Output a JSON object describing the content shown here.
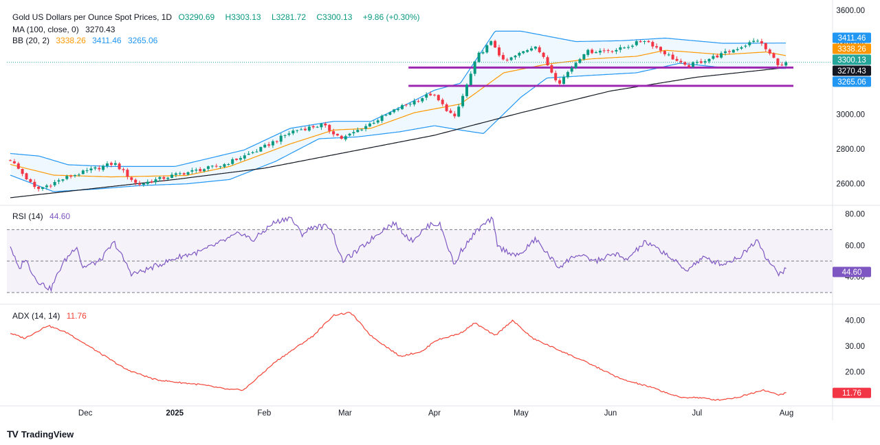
{
  "header": {
    "title": "Gold US Dollars per Ounce Spot Prices, 1D",
    "open_label": "O",
    "open": "3290.69",
    "high_label": "H",
    "high": "3303.13",
    "low_label": "L",
    "low": "3281.72",
    "close_label": "C",
    "close": "3300.13",
    "change": "+9.86 (+0.30%)"
  },
  "legend": {
    "ma_label": "MA (100, close, 0)",
    "ma_value": "3270.43",
    "bb_label": "BB (20, 2)",
    "bb_basis": "3338.26",
    "bb_upper": "3411.46",
    "bb_lower": "3265.06"
  },
  "rsi": {
    "label": "RSI (14)",
    "value": "44.60"
  },
  "adx": {
    "label": "ADX (14, 14)",
    "value": "11.76"
  },
  "brand": {
    "logo": "TV",
    "name": "TradingView"
  },
  "colors": {
    "up": "#089981",
    "down": "#f23645",
    "bb": "#2196f3",
    "bb_fill": "rgba(33,150,243,0.07)",
    "basis": "#ff9800",
    "ma": "#131722",
    "rsi": "#7e57c2",
    "adx": "#f44336",
    "support": "#9c27b0",
    "last": "#26a69a",
    "grid": "#e0e3eb"
  },
  "chart_data": [
    {
      "type": "candlestick",
      "title": "Gold US Dollars per Ounce Spot Prices, 1D",
      "ylim": [
        2480,
        3620
      ],
      "y_ticks": [
        "3600.00",
        "3400.00",
        "3200.00",
        "3000.00",
        "2800.00",
        "2600.00"
      ],
      "y_tick_values": [
        3600,
        3400,
        3200,
        3000,
        2800,
        2600
      ],
      "x_tick_labels": [
        "Dec",
        "2025",
        "Feb",
        "Mar",
        "Apr",
        "May",
        "Jun",
        "Jul",
        "Aug"
      ],
      "x_tick_dates": [
        "2024-12-01",
        "2025-01-01",
        "2025-02-01",
        "2025-03-01",
        "2025-04-01",
        "2025-05-01",
        "2025-06-01",
        "2025-07-01",
        "2025-08-01"
      ],
      "price_close_keypoints": [
        [
          "2024-11-05",
          2740
        ],
        [
          "2024-11-14",
          2565
        ],
        [
          "2024-11-25",
          2640
        ],
        [
          "2024-12-11",
          2720
        ],
        [
          "2024-12-19",
          2595
        ],
        [
          "2025-01-02",
          2655
        ],
        [
          "2025-01-17",
          2705
        ],
        [
          "2025-01-30",
          2795
        ],
        [
          "2025-02-11",
          2905
        ],
        [
          "2025-02-21",
          2940
        ],
        [
          "2025-02-28",
          2860
        ],
        [
          "2025-03-14",
          2985
        ],
        [
          "2025-03-20",
          3040
        ],
        [
          "2025-03-31",
          3120
        ],
        [
          "2025-04-08",
          2980
        ],
        [
          "2025-04-16",
          3340
        ],
        [
          "2025-04-21",
          3420
        ],
        [
          "2025-04-25",
          3300
        ],
        [
          "2025-05-06",
          3400
        ],
        [
          "2025-05-14",
          3180
        ],
        [
          "2025-05-23",
          3360
        ],
        [
          "2025-06-04",
          3375
        ],
        [
          "2025-06-13",
          3430
        ],
        [
          "2025-06-27",
          3275
        ],
        [
          "2025-07-11",
          3355
        ],
        [
          "2025-07-22",
          3430
        ],
        [
          "2025-07-30",
          3275
        ],
        [
          "2025-08-01",
          3300
        ]
      ],
      "bb_upper_keypoints": [
        [
          "2024-11-05",
          2775
        ],
        [
          "2024-11-15",
          2760
        ],
        [
          "2024-11-25",
          2710
        ],
        [
          "2024-12-10",
          2700
        ],
        [
          "2025-01-01",
          2700
        ],
        [
          "2025-01-25",
          2795
        ],
        [
          "2025-02-10",
          2920
        ],
        [
          "2025-02-25",
          2960
        ],
        [
          "2025-03-10",
          2960
        ],
        [
          "2025-03-25",
          3080
        ],
        [
          "2025-04-01",
          3140
        ],
        [
          "2025-04-10",
          3180
        ],
        [
          "2025-04-22",
          3480
        ],
        [
          "2025-05-01",
          3480
        ],
        [
          "2025-05-20",
          3420
        ],
        [
          "2025-06-05",
          3425
        ],
        [
          "2025-06-20",
          3440
        ],
        [
          "2025-07-10",
          3410
        ],
        [
          "2025-08-01",
          3411.46
        ]
      ],
      "bb_basis_keypoints": [
        [
          "2024-11-05",
          2712
        ],
        [
          "2024-11-20",
          2650
        ],
        [
          "2024-12-10",
          2640
        ],
        [
          "2025-01-05",
          2648
        ],
        [
          "2025-01-20",
          2700
        ],
        [
          "2025-02-10",
          2830
        ],
        [
          "2025-02-25",
          2910
        ],
        [
          "2025-03-10",
          2920
        ],
        [
          "2025-03-25",
          3010
        ],
        [
          "2025-04-10",
          3060
        ],
        [
          "2025-04-25",
          3240
        ],
        [
          "2025-05-10",
          3290
        ],
        [
          "2025-05-25",
          3320
        ],
        [
          "2025-06-10",
          3335
        ],
        [
          "2025-06-20",
          3370
        ],
        [
          "2025-07-10",
          3345
        ],
        [
          "2025-07-25",
          3360
        ],
        [
          "2025-08-01",
          3338.26
        ]
      ],
      "bb_lower_keypoints": [
        [
          "2024-11-05",
          2650
        ],
        [
          "2024-11-20",
          2555
        ],
        [
          "2024-12-05",
          2570
        ],
        [
          "2024-12-20",
          2590
        ],
        [
          "2025-01-05",
          2600
        ],
        [
          "2025-01-20",
          2625
        ],
        [
          "2025-02-05",
          2730
        ],
        [
          "2025-02-20",
          2860
        ],
        [
          "2025-03-05",
          2870
        ],
        [
          "2025-03-20",
          2900
        ],
        [
          "2025-04-01",
          2935
        ],
        [
          "2025-04-10",
          2910
        ],
        [
          "2025-04-18",
          2890
        ],
        [
          "2025-05-01",
          3100
        ],
        [
          "2025-05-10",
          3210
        ],
        [
          "2025-05-25",
          3225
        ],
        [
          "2025-06-10",
          3240
        ],
        [
          "2025-06-25",
          3295
        ],
        [
          "2025-07-10",
          3270
        ],
        [
          "2025-08-01",
          3265.06
        ]
      ],
      "ma100_keypoints": [
        [
          "2024-11-05",
          2520
        ],
        [
          "2025-01-01",
          2625
        ],
        [
          "2025-02-01",
          2690
        ],
        [
          "2025-03-01",
          2780
        ],
        [
          "2025-04-01",
          2880
        ],
        [
          "2025-05-01",
          3010
        ],
        [
          "2025-06-01",
          3135
        ],
        [
          "2025-07-01",
          3215
        ],
        [
          "2025-08-01",
          3270.43
        ]
      ],
      "support_lines": [
        {
          "y": 3270,
          "x_start": "2025-03-23",
          "x_end": "2025-08-01"
        },
        {
          "y": 3165,
          "x_start": "2025-03-23",
          "x_end": "2025-08-01"
        }
      ],
      "value_tags": [
        {
          "text": "3411.46",
          "value": 3411.46,
          "color": "#2196f3"
        },
        {
          "text": "3338.26",
          "value": 3338.26,
          "color": "#ff9800"
        },
        {
          "text": "3300.13",
          "value": 3300.13,
          "color": "#26a69a"
        },
        {
          "text": "3270.43",
          "value": 3270.43,
          "color": "#131722"
        },
        {
          "text": "3265.06",
          "value": 3265.06,
          "color": "#2196f3"
        }
      ]
    },
    {
      "type": "line",
      "title": "RSI (14)",
      "ylim": [
        23,
        85
      ],
      "y_ticks": [
        "80.00",
        "60.00",
        "40.00"
      ],
      "y_tick_values": [
        80,
        60,
        40
      ],
      "band": [
        30,
        70
      ],
      "midline": 50,
      "keypoints": [
        [
          "2024-11-05",
          60
        ],
        [
          "2024-11-08",
          44
        ],
        [
          "2024-11-10",
          52
        ],
        [
          "2024-11-14",
          38
        ],
        [
          "2024-11-19",
          32
        ],
        [
          "2024-11-23",
          48
        ],
        [
          "2024-11-28",
          60
        ],
        [
          "2024-11-30",
          46
        ],
        [
          "2024-12-06",
          50
        ],
        [
          "2024-12-11",
          62
        ],
        [
          "2024-12-17",
          42
        ],
        [
          "2024-12-20",
          43
        ],
        [
          "2024-12-27",
          48
        ],
        [
          "2025-01-03",
          53
        ],
        [
          "2025-01-10",
          56
        ],
        [
          "2025-01-17",
          62
        ],
        [
          "2025-01-24",
          68
        ],
        [
          "2025-01-28",
          63
        ],
        [
          "2025-02-04",
          74
        ],
        [
          "2025-02-10",
          78
        ],
        [
          "2025-02-14",
          67
        ],
        [
          "2025-02-18",
          72
        ],
        [
          "2025-02-24",
          72
        ],
        [
          "2025-02-28",
          50
        ],
        [
          "2025-03-05",
          56
        ],
        [
          "2025-03-14",
          70
        ],
        [
          "2025-03-18",
          74
        ],
        [
          "2025-03-24",
          63
        ],
        [
          "2025-03-31",
          74
        ],
        [
          "2025-04-03",
          73
        ],
        [
          "2025-04-08",
          47
        ],
        [
          "2025-04-10",
          56
        ],
        [
          "2025-04-16",
          70
        ],
        [
          "2025-04-21",
          77
        ],
        [
          "2025-04-23",
          59
        ],
        [
          "2025-04-30",
          53
        ],
        [
          "2025-05-06",
          64
        ],
        [
          "2025-05-14",
          46
        ],
        [
          "2025-05-20",
          54
        ],
        [
          "2025-05-27",
          50
        ],
        [
          "2025-06-03",
          55
        ],
        [
          "2025-06-06",
          50
        ],
        [
          "2025-06-13",
          62
        ],
        [
          "2025-06-20",
          55
        ],
        [
          "2025-06-27",
          44
        ],
        [
          "2025-07-03",
          52
        ],
        [
          "2025-07-10",
          48
        ],
        [
          "2025-07-16",
          53
        ],
        [
          "2025-07-22",
          64
        ],
        [
          "2025-07-25",
          52
        ],
        [
          "2025-07-29",
          42
        ],
        [
          "2025-08-01",
          44.6
        ]
      ],
      "value_tag": {
        "text": "44.60",
        "value": 44.6
      }
    },
    {
      "type": "line",
      "title": "ADX (14, 14)",
      "ylim": [
        7,
        46
      ],
      "y_ticks": [
        "40.00",
        "30.00",
        "20.00"
      ],
      "y_tick_values": [
        40,
        30,
        20
      ],
      "keypoints": [
        [
          "2024-11-05",
          35
        ],
        [
          "2024-11-10",
          33
        ],
        [
          "2024-11-18",
          38
        ],
        [
          "2024-11-25",
          35
        ],
        [
          "2024-12-05",
          28
        ],
        [
          "2024-12-15",
          21
        ],
        [
          "2024-12-25",
          17
        ],
        [
          "2025-01-01",
          16
        ],
        [
          "2025-01-10",
          15
        ],
        [
          "2025-01-20",
          13
        ],
        [
          "2025-01-25",
          13
        ],
        [
          "2025-02-05",
          24
        ],
        [
          "2025-02-18",
          34
        ],
        [
          "2025-02-25",
          42
        ],
        [
          "2025-03-03",
          43
        ],
        [
          "2025-03-10",
          34
        ],
        [
          "2025-03-20",
          26
        ],
        [
          "2025-03-28",
          28
        ],
        [
          "2025-04-01",
          32
        ],
        [
          "2025-04-10",
          35
        ],
        [
          "2025-04-15",
          39
        ],
        [
          "2025-04-22",
          34
        ],
        [
          "2025-04-28",
          40
        ],
        [
          "2025-05-05",
          33
        ],
        [
          "2025-05-15",
          28
        ],
        [
          "2025-05-25",
          23
        ],
        [
          "2025-06-05",
          17
        ],
        [
          "2025-06-15",
          14
        ],
        [
          "2025-06-25",
          10
        ],
        [
          "2025-07-01",
          10
        ],
        [
          "2025-07-08",
          9
        ],
        [
          "2025-07-15",
          10
        ],
        [
          "2025-07-24",
          13
        ],
        [
          "2025-07-29",
          11
        ],
        [
          "2025-08-01",
          11.76
        ]
      ],
      "value_tag": {
        "text": "11.76",
        "value": 11.76
      }
    }
  ]
}
